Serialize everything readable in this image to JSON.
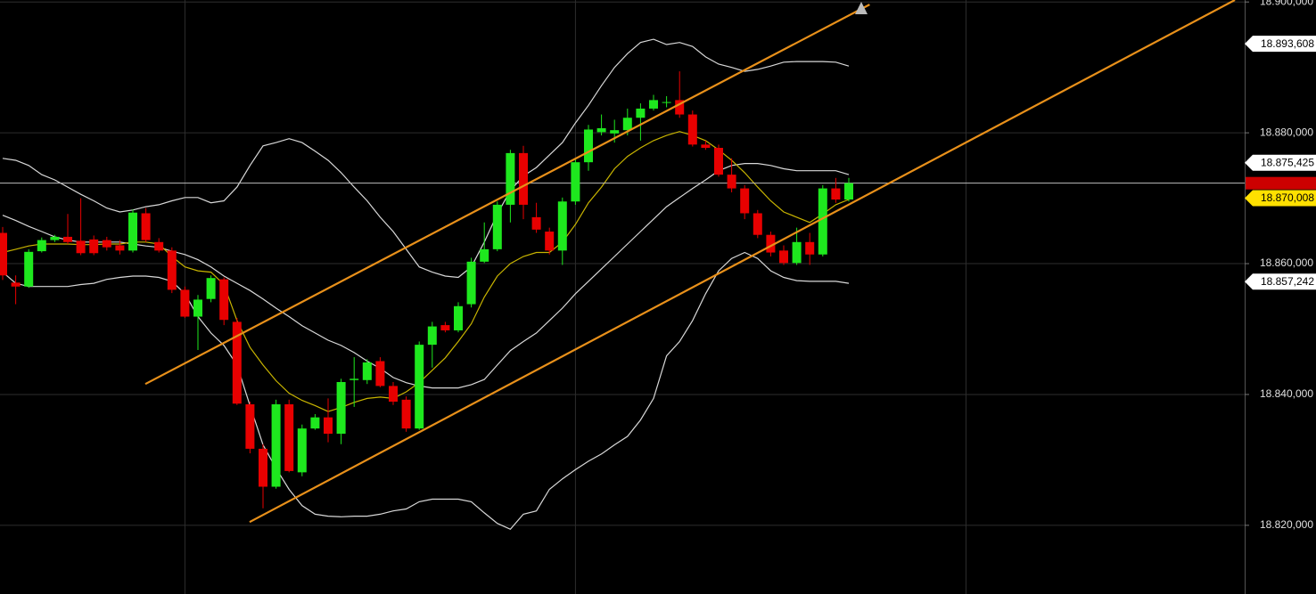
{
  "chart_data": {
    "type": "candlestick",
    "up_color": "#1ee81e",
    "down_color": "#e80000",
    "grid": true,
    "ylim": [
      18809.5,
      18900.3
    ],
    "yticks": [
      {
        "value": 18820,
        "label": "18.820,000"
      },
      {
        "value": 18840,
        "label": "18.840,000"
      },
      {
        "value": 18860,
        "label": "18.860,000"
      },
      {
        "value": 18880,
        "label": "18.880,000"
      },
      {
        "value": 18900,
        "label": "18.900,000"
      }
    ],
    "xticks": [
      14,
      44,
      74
    ],
    "open": [
      18864.7,
      18857.1,
      18856.5,
      18861.9,
      18863.6,
      18864.1,
      18863.5,
      18863.7,
      18863.6,
      18862.8,
      18862.0,
      18867.7,
      18863.3,
      18862.0,
      18856.0,
      18851.9,
      18854.6,
      18857.6,
      18851.1,
      18838.5,
      18831.7,
      18825.9,
      18838.5,
      18828.1,
      18834.8,
      18836.5,
      18834.0,
      18842.2,
      18842.2,
      18845.1,
      18841.3,
      18839.2,
      18834.8,
      18847.6,
      18850.6,
      18849.8,
      18853.8,
      18860.3,
      18862.2,
      18869.0,
      18876.9,
      18867.1,
      18864.9,
      18862.0,
      18869.5,
      18875.5,
      18880.1,
      18879.9,
      18880.4,
      18882.3,
      18883.7,
      18884.6,
      18885.0,
      18882.8,
      18878.2,
      18877.7,
      18873.6,
      18871.5,
      18867.7,
      18864.4,
      18862.0,
      18860.1,
      18863.3,
      18861.4,
      18871.5,
      18869.8
    ],
    "high": [
      18865.6,
      18858.2,
      18862.2,
      18864.0,
      18864.4,
      18867.6,
      18870.0,
      18864.3,
      18864.1,
      18863.6,
      18868.3,
      18868.5,
      18863.9,
      18862.5,
      18856.5,
      18855.2,
      18858.2,
      18857.9,
      18851.7,
      18838.9,
      18832.4,
      18839.2,
      18839.2,
      18835.4,
      18837.0,
      18839.4,
      18842.4,
      18845.7,
      18845.4,
      18845.7,
      18841.9,
      18839.7,
      18848.1,
      18851.1,
      18851.1,
      18854.1,
      18860.9,
      18866.3,
      18869.5,
      18877.4,
      18878.0,
      18869.3,
      18865.5,
      18870.1,
      18876.1,
      18881.2,
      18882.8,
      18882.0,
      18883.7,
      18884.5,
      18885.8,
      18885.6,
      18889.4,
      18883.4,
      18878.8,
      18878.2,
      18876.1,
      18872.0,
      18868.2,
      18864.9,
      18862.8,
      18865.5,
      18864.7,
      18872.0,
      18873.1,
      18873.1
    ],
    "low": [
      18857.5,
      18853.8,
      18856.3,
      18861.7,
      18863.3,
      18863.0,
      18861.3,
      18861.3,
      18862.0,
      18861.4,
      18861.7,
      18863.3,
      18861.7,
      18855.5,
      18851.7,
      18846.8,
      18854.1,
      18850.6,
      18838.4,
      18831.0,
      18822.6,
      18825.6,
      18828.1,
      18827.5,
      18834.6,
      18832.7,
      18832.4,
      18838.1,
      18841.6,
      18841.1,
      18838.4,
      18834.3,
      18834.6,
      18844.1,
      18849.5,
      18849.5,
      18853.3,
      18860.1,
      18861.9,
      18866.3,
      18866.8,
      18864.7,
      18861.4,
      18859.8,
      18869.0,
      18874.2,
      18879.6,
      18878.5,
      18879.6,
      18878.8,
      18883.4,
      18883.9,
      18882.3,
      18877.9,
      18877.4,
      18873.3,
      18870.9,
      18866.8,
      18863.9,
      18861.1,
      18859.8,
      18859.8,
      18859.8,
      18861.1,
      18869.3,
      18869.5
    ],
    "close": [
      18858.2,
      18856.5,
      18861.8,
      18863.6,
      18864.1,
      18863.3,
      18861.6,
      18861.6,
      18862.5,
      18862.0,
      18867.8,
      18863.6,
      18862.0,
      18856.0,
      18851.9,
      18854.5,
      18857.8,
      18851.4,
      18838.6,
      18831.7,
      18825.9,
      18838.5,
      18828.3,
      18834.8,
      18836.5,
      18834.0,
      18841.9,
      18842.4,
      18844.9,
      18841.3,
      18838.9,
      18834.8,
      18847.6,
      18850.4,
      18849.8,
      18853.5,
      18860.3,
      18862.2,
      18869.0,
      18876.9,
      18869.0,
      18865.2,
      18862.0,
      18869.5,
      18875.5,
      18880.5,
      18880.7,
      18880.4,
      18882.3,
      18883.7,
      18885.0,
      18884.7,
      18882.8,
      18878.2,
      18877.7,
      18873.6,
      18871.5,
      18867.7,
      18864.4,
      18861.7,
      18860.1,
      18863.3,
      18861.4,
      18871.5,
      18869.8,
      18872.3
    ],
    "lines": [
      {
        "color": "#d8d8d8",
        "values": [
          18876.1,
          18875.8,
          18875.0,
          18873.6,
          18872.8,
          18871.7,
          18870.6,
          18869.6,
          18868.5,
          18867.9,
          18868.2,
          18868.7,
          18869.0,
          18869.6,
          18870.1,
          18870.1,
          18869.3,
          18869.6,
          18871.7,
          18875.0,
          18878.0,
          18878.5,
          18879.1,
          18878.5,
          18877.2,
          18875.8,
          18873.9,
          18871.7,
          18869.6,
          18867.1,
          18864.9,
          18862.2,
          18859.5,
          18858.7,
          18858.1,
          18857.9,
          18859.5,
          18863.3,
          18867.6,
          18871.2,
          18873.4,
          18874.7,
          18876.6,
          18878.5,
          18881.5,
          18884.2,
          18887.2,
          18890.0,
          18892.1,
          18893.8,
          18894.3,
          18893.5,
          18893.8,
          18893.2,
          18891.6,
          18890.5,
          18890.0,
          18889.4,
          18889.7,
          18890.2,
          18890.8,
          18890.9,
          18890.9,
          18890.9,
          18890.8,
          18890.2
        ]
      },
      {
        "color": "#d8d8d8",
        "values": [
          18867.4,
          18866.6,
          18865.7,
          18864.9,
          18864.1,
          18863.6,
          18863.3,
          18863.3,
          18863.3,
          18863.3,
          18863.0,
          18862.7,
          18862.5,
          18861.9,
          18861.4,
          18860.6,
          18859.5,
          18858.1,
          18857.0,
          18855.9,
          18854.6,
          18853.2,
          18851.9,
          18850.5,
          18849.4,
          18848.3,
          18847.5,
          18846.4,
          18845.1,
          18844.0,
          18842.6,
          18841.8,
          18841.3,
          18841.0,
          18841.0,
          18841.0,
          18841.5,
          18842.3,
          18844.5,
          18846.7,
          18848.1,
          18849.4,
          18851.3,
          18853.2,
          18855.4,
          18857.3,
          18859.2,
          18861.1,
          18863.0,
          18864.9,
          18866.8,
          18868.7,
          18870.1,
          18871.5,
          18872.8,
          18874.2,
          18875.0,
          18875.3,
          18875.3,
          18875.0,
          18874.5,
          18874.2,
          18874.2,
          18874.2,
          18874.2,
          18873.6
        ]
      },
      {
        "color": "#d8d8d8",
        "values": [
          18858.7,
          18857.0,
          18856.5,
          18856.5,
          18856.5,
          18856.5,
          18856.8,
          18857.0,
          18857.6,
          18857.9,
          18858.1,
          18858.1,
          18857.9,
          18857.3,
          18855.4,
          18851.9,
          18849.4,
          18847.5,
          18844.5,
          18838.3,
          18832.3,
          18828.7,
          18825.5,
          18823.0,
          18821.7,
          18821.4,
          18821.3,
          18821.4,
          18821.4,
          18821.7,
          18822.2,
          18822.5,
          18823.6,
          18824.0,
          18824.0,
          18824.0,
          18823.6,
          18821.9,
          18820.3,
          18819.4,
          18821.7,
          18822.2,
          18825.5,
          18827.1,
          18828.5,
          18829.8,
          18830.9,
          18832.3,
          18833.6,
          18836.1,
          18839.4,
          18845.9,
          18848.1,
          18851.3,
          18855.4,
          18858.9,
          18860.8,
          18861.7,
          18860.8,
          18858.9,
          18857.9,
          18857.4,
          18857.3,
          18857.3,
          18857.3,
          18857.0
        ]
      },
      {
        "color": "#c8b400",
        "values": [
          18861.7,
          18862.2,
          18862.7,
          18863.0,
          18863.0,
          18863.0,
          18862.9,
          18862.9,
          18863.0,
          18863.0,
          18863.3,
          18863.3,
          18863.0,
          18861.1,
          18859.5,
          18858.9,
          18858.7,
          18856.8,
          18851.3,
          18847.2,
          18844.5,
          18842.1,
          18840.2,
          18839.1,
          18838.3,
          18837.4,
          18838.0,
          18838.8,
          18839.4,
          18839.6,
          18839.4,
          18840.4,
          18841.8,
          18843.7,
          18845.6,
          18848.1,
          18850.8,
          18854.9,
          18858.1,
          18860.0,
          18861.1,
          18861.7,
          18861.7,
          18863.3,
          18866.0,
          18869.3,
          18871.7,
          18874.5,
          18876.4,
          18877.7,
          18878.8,
          18879.6,
          18880.2,
          18879.6,
          18878.8,
          18877.4,
          18875.8,
          18873.9,
          18871.7,
          18869.6,
          18867.9,
          18867.1,
          18866.3,
          18867.6,
          18869.0,
          18869.8
        ]
      }
    ],
    "trendlines": [
      {
        "color": "#e8901a",
        "from": [
          10.96,
          18841.6
        ],
        "to": [
          66.6,
          18899.6
        ]
      },
      {
        "color": "#e8901a",
        "from": [
          18.97,
          18820.5
        ],
        "to": [
          94.66,
          18900.3
        ]
      }
    ],
    "last_price_color": "#cc0000",
    "price_markers": [
      {
        "value": 18893.608,
        "label": "18.893,608",
        "color": "#ffffff"
      },
      {
        "value": 18875.425,
        "label": "18.875,425",
        "color": "#ffffff"
      },
      {
        "value": 18870.008,
        "label": "18.870,008",
        "color": "#ffe000"
      },
      {
        "value": 18857.242,
        "label": "18.857,242",
        "color": "#ffffff"
      }
    ]
  }
}
